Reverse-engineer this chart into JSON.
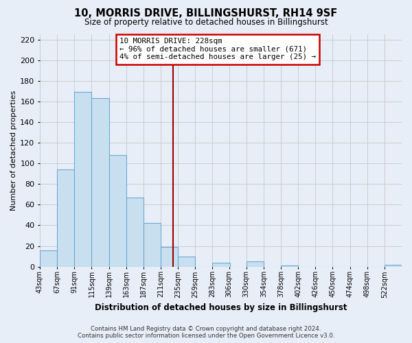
{
  "title": "10, MORRIS DRIVE, BILLINGSHURST, RH14 9SF",
  "subtitle": "Size of property relative to detached houses in Billingshurst",
  "xlabel": "Distribution of detached houses by size in Billingshurst",
  "ylabel": "Number of detached properties",
  "bin_labels": [
    "43sqm",
    "67sqm",
    "91sqm",
    "115sqm",
    "139sqm",
    "163sqm",
    "187sqm",
    "211sqm",
    "235sqm",
    "259sqm",
    "283sqm",
    "306sqm",
    "330sqm",
    "354sqm",
    "378sqm",
    "402sqm",
    "426sqm",
    "450sqm",
    "474sqm",
    "498sqm",
    "522sqm"
  ],
  "bin_edges": [
    43,
    67,
    91,
    115,
    139,
    163,
    187,
    211,
    235,
    259,
    283,
    306,
    330,
    354,
    378,
    402,
    426,
    450,
    474,
    498,
    522
  ],
  "bar_heights": [
    16,
    94,
    169,
    163,
    108,
    67,
    42,
    19,
    10,
    0,
    4,
    0,
    5,
    0,
    1,
    0,
    0,
    0,
    0,
    0,
    2
  ],
  "bar_color": "#c8dff0",
  "bar_edge_color": "#6aaad4",
  "property_value": 228,
  "marker_line_color": "#990000",
  "annotation_title": "10 MORRIS DRIVE: 228sqm",
  "annotation_line1": "← 96% of detached houses are smaller (671)",
  "annotation_line2": "4% of semi-detached houses are larger (25) →",
  "annotation_box_color": "#ffffff",
  "annotation_box_edge": "#cc0000",
  "ylim": [
    0,
    225
  ],
  "yticks": [
    0,
    20,
    40,
    60,
    80,
    100,
    120,
    140,
    160,
    180,
    200,
    220
  ],
  "grid_color": "#cccccc",
  "footer_line1": "Contains HM Land Registry data © Crown copyright and database right 2024.",
  "footer_line2": "Contains public sector information licensed under the Open Government Licence v3.0.",
  "background_color": "#e8eef8",
  "plot_background": "#e8eef8"
}
